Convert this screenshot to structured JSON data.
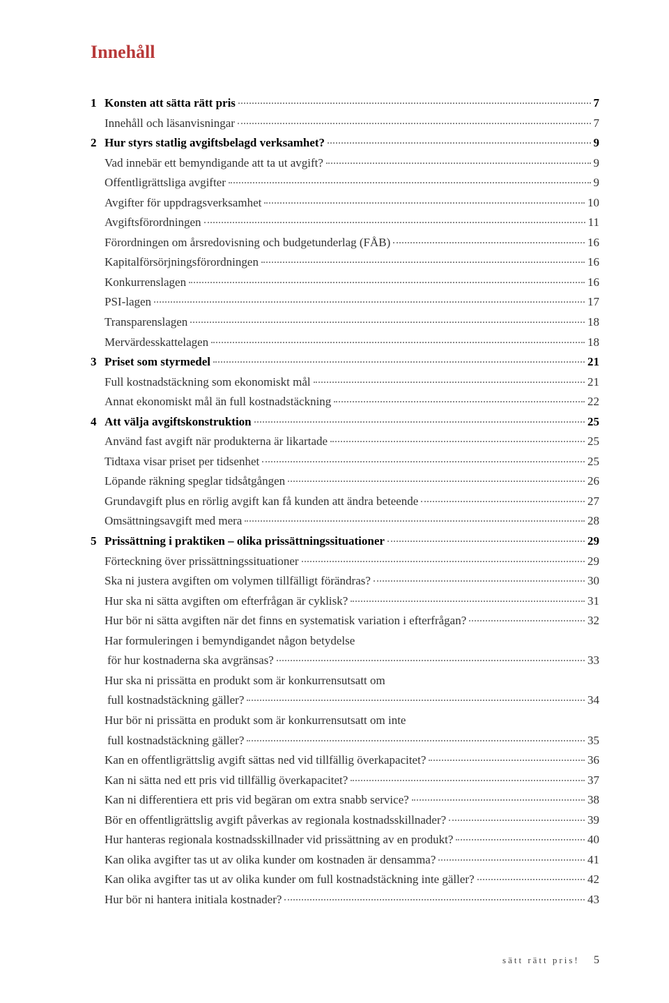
{
  "title": "Innehåll",
  "footer_label": "sätt rätt pris!",
  "footer_page": "5",
  "styling": {
    "title_color": "#b83a3a",
    "text_color": "#333333",
    "bold_color": "#000000",
    "leader_color": "#888888",
    "background_color": "#ffffff",
    "body_fontsize": 17,
    "title_fontsize": 26,
    "line_height": 1.68
  },
  "entries": [
    {
      "num": "1",
      "label": "Konsten att sätta rätt pris",
      "page": "7",
      "bold": true,
      "indent": 0
    },
    {
      "num": "",
      "label": "Innehåll och läsanvisningar",
      "page": "7",
      "bold": false,
      "indent": 0
    },
    {
      "num": "2",
      "label": "Hur styrs statlig avgiftsbelagd verksamhet?",
      "page": "9",
      "bold": true,
      "indent": 0
    },
    {
      "num": "",
      "label": "Vad innebär ett bemyndigande att ta ut avgift?",
      "page": "9",
      "bold": false,
      "indent": 0
    },
    {
      "num": "",
      "label": "Offentligrättsliga avgifter",
      "page": "9",
      "bold": false,
      "indent": 0
    },
    {
      "num": "",
      "label": "Avgifter för uppdragsverksamhet",
      "page": "10",
      "bold": false,
      "indent": 0
    },
    {
      "num": "",
      "label": "Avgiftsförordningen",
      "page": "11",
      "bold": false,
      "indent": 0
    },
    {
      "num": "",
      "label": "Förordningen om årsredovisning och budgetunderlag (FÅB)",
      "page": "16",
      "bold": false,
      "indent": 0
    },
    {
      "num": "",
      "label": "Kapitalförsörjningsförordningen",
      "page": "16",
      "bold": false,
      "indent": 0
    },
    {
      "num": "",
      "label": "Konkurrenslagen",
      "page": "16",
      "bold": false,
      "indent": 0
    },
    {
      "num": "",
      "label": "PSI-lagen",
      "page": "17",
      "bold": false,
      "indent": 0
    },
    {
      "num": "",
      "label": "Transparenslagen",
      "page": "18",
      "bold": false,
      "indent": 0
    },
    {
      "num": "",
      "label": "Mervärdesskattelagen",
      "page": "18",
      "bold": false,
      "indent": 0
    },
    {
      "num": "3",
      "label": "Priset som styrmedel",
      "page": "21",
      "bold": true,
      "indent": 0
    },
    {
      "num": "",
      "label": "Full kostnadstäckning som ekonomiskt mål",
      "page": "21",
      "bold": false,
      "indent": 0
    },
    {
      "num": "",
      "label": "Annat ekonomiskt mål än full kostnadstäckning",
      "page": "22",
      "bold": false,
      "indent": 0
    },
    {
      "num": "4",
      "label": "Att välja avgiftskonstruktion",
      "page": "25",
      "bold": true,
      "indent": 0
    },
    {
      "num": "",
      "label": "Använd fast avgift när produkterna är likartade",
      "page": "25",
      "bold": false,
      "indent": 0
    },
    {
      "num": "",
      "label": "Tidtaxa visar priset per tidsenhet",
      "page": "25",
      "bold": false,
      "indent": 0
    },
    {
      "num": "",
      "label": "Löpande räkning speglar tidsåtgången",
      "page": "26",
      "bold": false,
      "indent": 0
    },
    {
      "num": "",
      "label": "Grundavgift plus en rörlig avgift kan få kunden att ändra beteende",
      "page": "27",
      "bold": false,
      "indent": 0
    },
    {
      "num": "",
      "label": "Omsättningsavgift med mera",
      "page": "28",
      "bold": false,
      "indent": 0
    },
    {
      "num": "5",
      "label": "Prissättning i praktiken – olika prissättningssituationer",
      "page": "29",
      "bold": true,
      "indent": 0
    },
    {
      "num": "",
      "label": "Förteckning över prissättningssituationer",
      "page": "29",
      "bold": false,
      "indent": 0
    },
    {
      "num": "",
      "label": "Ska ni justera avgiften om volymen tillfälligt förändras?",
      "page": "30",
      "bold": false,
      "indent": 0
    },
    {
      "num": "",
      "label": "Hur ska ni sätta avgiften om efterfrågan är cyklisk?",
      "page": "31",
      "bold": false,
      "indent": 0
    },
    {
      "num": "",
      "label": "Hur bör ni sätta avgiften när det finns en systematisk variation i efterfrågan?",
      "page": "32",
      "bold": false,
      "indent": 0
    },
    {
      "num": "",
      "label": "Har formuleringen i bemyndigandet någon betydelse",
      "page": "",
      "bold": false,
      "indent": 0,
      "noleader": true
    },
    {
      "num": "",
      "label": "för hur kostnaderna ska avgränsas?",
      "page": "33",
      "bold": false,
      "indent": 1
    },
    {
      "num": "",
      "label": "Hur ska ni prissätta en produkt som är konkurrensutsatt om",
      "page": "",
      "bold": false,
      "indent": 0,
      "noleader": true
    },
    {
      "num": "",
      "label": "full kostnadstäckning gäller?",
      "page": "34",
      "bold": false,
      "indent": 1
    },
    {
      "num": "",
      "label": "Hur bör ni prissätta en produkt som är konkurrensutsatt om inte",
      "page": "",
      "bold": false,
      "indent": 0,
      "noleader": true
    },
    {
      "num": "",
      "label": "full kostnadstäckning gäller?",
      "page": "35",
      "bold": false,
      "indent": 1
    },
    {
      "num": "",
      "label": "Kan en offentligrättslig avgift sättas ned vid tillfällig överkapacitet?",
      "page": "36",
      "bold": false,
      "indent": 0
    },
    {
      "num": "",
      "label": "Kan ni sätta ned ett pris vid tillfällig överkapacitet?",
      "page": "37",
      "bold": false,
      "indent": 0
    },
    {
      "num": "",
      "label": "Kan ni differentiera ett pris vid begäran om extra snabb service?",
      "page": "38",
      "bold": false,
      "indent": 0
    },
    {
      "num": "",
      "label": "Bör en offentligrättslig avgift påverkas av regionala kostnadsskillnader?",
      "page": "39",
      "bold": false,
      "indent": 0
    },
    {
      "num": "",
      "label": "Hur hanteras regionala kostnadsskillnader vid prissättning av en produkt?",
      "page": "40",
      "bold": false,
      "indent": 0
    },
    {
      "num": "",
      "label": "Kan olika avgifter tas ut av olika kunder om kostnaden är densamma?",
      "page": "41",
      "bold": false,
      "indent": 0
    },
    {
      "num": "",
      "label": "Kan olika avgifter tas ut av olika kunder om full kostnadstäckning inte gäller?",
      "page": "42",
      "bold": false,
      "indent": 0
    },
    {
      "num": "",
      "label": "Hur bör ni hantera initiala kostnader?",
      "page": "43",
      "bold": false,
      "indent": 0
    }
  ]
}
